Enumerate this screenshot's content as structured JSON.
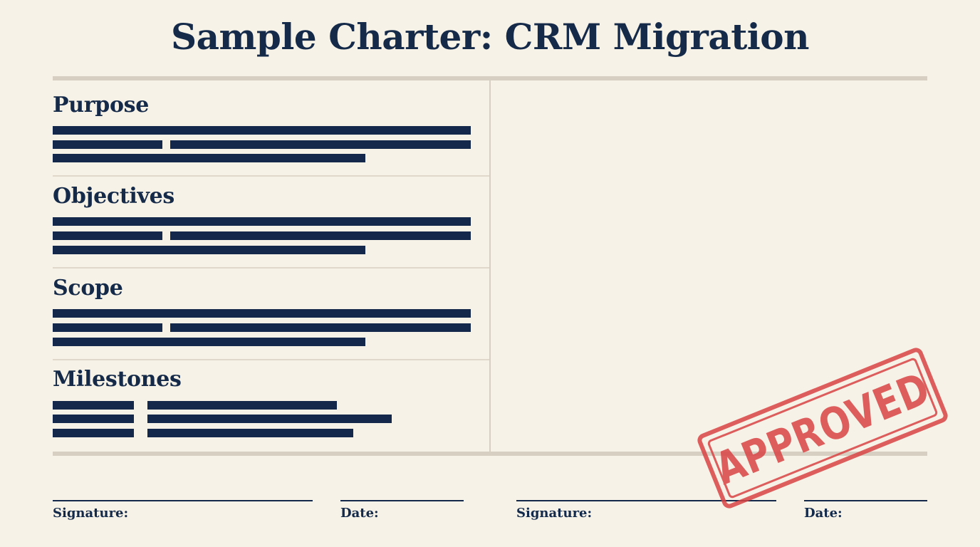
{
  "document": {
    "title": "Sample Charter: CRM Migration",
    "sections": [
      {
        "heading": "Purpose"
      },
      {
        "heading": "Objectives"
      },
      {
        "heading": "Scope"
      },
      {
        "heading": "Milestones"
      }
    ],
    "signatures": [
      {
        "label": "Signature:"
      },
      {
        "label": "Date:"
      },
      {
        "label": "Signature:"
      },
      {
        "label": "Date:"
      }
    ],
    "stamp": {
      "text": "APPROVED",
      "color": "#d84444"
    }
  },
  "colors": {
    "background": "#f6f2e8",
    "ink": "#13284a",
    "rule": "#d7d0c2"
  }
}
